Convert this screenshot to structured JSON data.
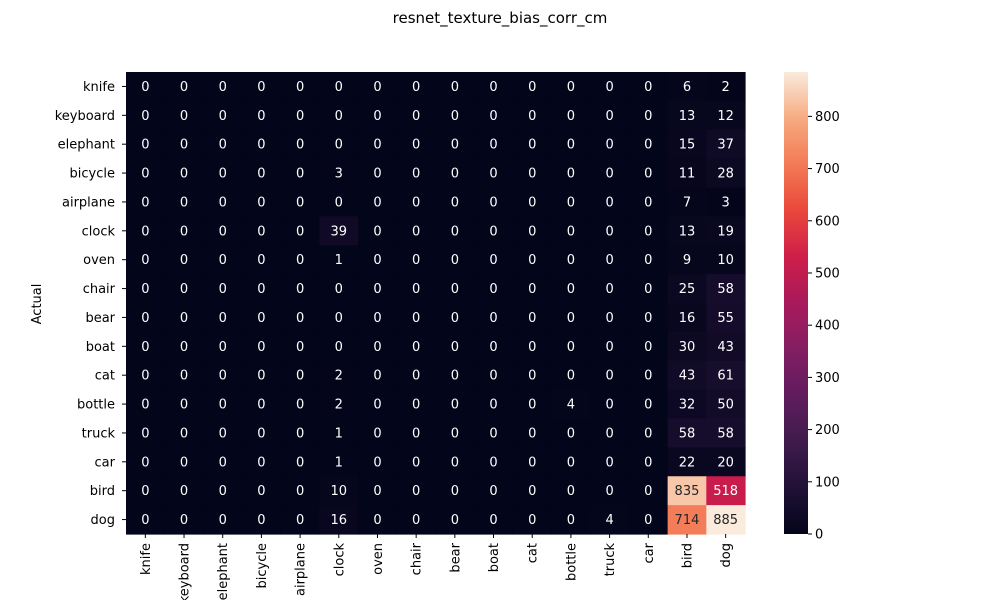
{
  "chart_data": {
    "type": "heatmap",
    "title": "resnet_texture_bias_corr_cm",
    "xlabel": "",
    "ylabel": "Actual",
    "row_labels": [
      "knife",
      "keyboard",
      "elephant",
      "bicycle",
      "airplane",
      "clock",
      "oven",
      "chair",
      "bear",
      "boat",
      "cat",
      "bottle",
      "truck",
      "car",
      "bird",
      "dog"
    ],
    "col_labels": [
      "knife",
      "keyboard",
      "elephant",
      "bicycle",
      "airplane",
      "clock",
      "oven",
      "chair",
      "bear",
      "boat",
      "cat",
      "bottle",
      "truck",
      "car",
      "bird",
      "dog"
    ],
    "values": [
      [
        0,
        0,
        0,
        0,
        0,
        0,
        0,
        0,
        0,
        0,
        0,
        0,
        0,
        0,
        6,
        2
      ],
      [
        0,
        0,
        0,
        0,
        0,
        0,
        0,
        0,
        0,
        0,
        0,
        0,
        0,
        0,
        13,
        12
      ],
      [
        0,
        0,
        0,
        0,
        0,
        0,
        0,
        0,
        0,
        0,
        0,
        0,
        0,
        0,
        15,
        37
      ],
      [
        0,
        0,
        0,
        0,
        0,
        3,
        0,
        0,
        0,
        0,
        0,
        0,
        0,
        0,
        11,
        28
      ],
      [
        0,
        0,
        0,
        0,
        0,
        0,
        0,
        0,
        0,
        0,
        0,
        0,
        0,
        0,
        7,
        3
      ],
      [
        0,
        0,
        0,
        0,
        0,
        39,
        0,
        0,
        0,
        0,
        0,
        0,
        0,
        0,
        13,
        19
      ],
      [
        0,
        0,
        0,
        0,
        0,
        1,
        0,
        0,
        0,
        0,
        0,
        0,
        0,
        0,
        9,
        10
      ],
      [
        0,
        0,
        0,
        0,
        0,
        0,
        0,
        0,
        0,
        0,
        0,
        0,
        0,
        0,
        25,
        58
      ],
      [
        0,
        0,
        0,
        0,
        0,
        0,
        0,
        0,
        0,
        0,
        0,
        0,
        0,
        0,
        16,
        55
      ],
      [
        0,
        0,
        0,
        0,
        0,
        0,
        0,
        0,
        0,
        0,
        0,
        0,
        0,
        0,
        30,
        43
      ],
      [
        0,
        0,
        0,
        0,
        0,
        2,
        0,
        0,
        0,
        0,
        0,
        0,
        0,
        0,
        43,
        61
      ],
      [
        0,
        0,
        0,
        0,
        0,
        2,
        0,
        0,
        0,
        0,
        0,
        4,
        0,
        0,
        32,
        50
      ],
      [
        0,
        0,
        0,
        0,
        0,
        1,
        0,
        0,
        0,
        0,
        0,
        0,
        0,
        0,
        58,
        58
      ],
      [
        0,
        0,
        0,
        0,
        0,
        1,
        0,
        0,
        0,
        0,
        0,
        0,
        0,
        0,
        22,
        20
      ],
      [
        0,
        0,
        0,
        0,
        0,
        10,
        0,
        0,
        0,
        0,
        0,
        0,
        0,
        0,
        835,
        518
      ],
      [
        0,
        0,
        0,
        0,
        0,
        16,
        0,
        0,
        0,
        0,
        0,
        0,
        4,
        0,
        714,
        885
      ]
    ],
    "vmin": 0,
    "vmax": 885,
    "colormap": "rocket",
    "colorbar_ticks": [
      0,
      100,
      200,
      300,
      400,
      500,
      600,
      700,
      800
    ],
    "annotated": true,
    "grid": false
  }
}
